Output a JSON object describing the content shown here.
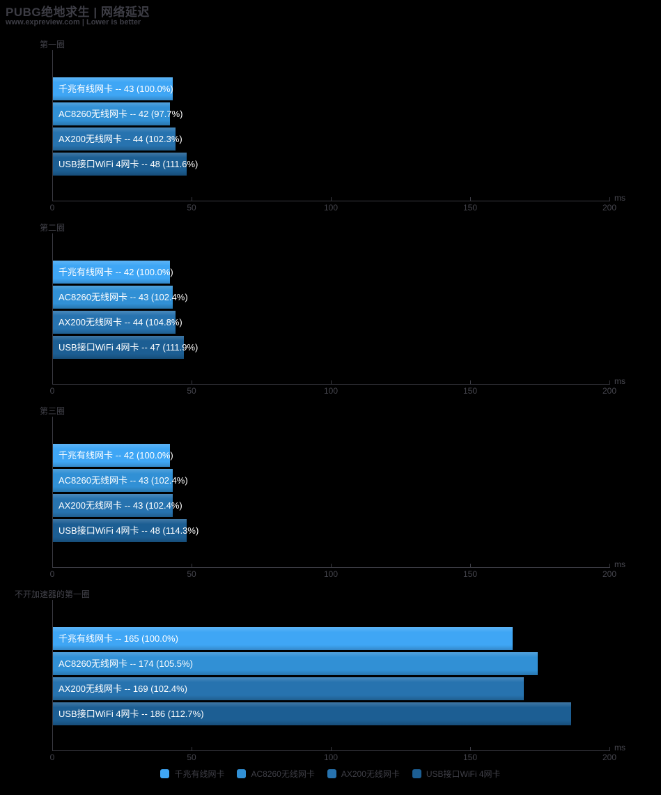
{
  "header": {
    "title": "PUBG绝地求生 | 网络延迟",
    "subtitle": "www.expreview.com | Lower is better"
  },
  "colors": {
    "background": "#000000",
    "chrome_text": "#43434b",
    "axis_line": "#3a3a42",
    "bar_text": "#ffffff",
    "series": [
      "#3fa6f5",
      "#3190d5",
      "#2773af",
      "#1c5e93"
    ]
  },
  "axis": {
    "min": 0,
    "max": 200,
    "ticks": [
      0,
      50,
      100,
      150,
      200
    ],
    "unit": "ms"
  },
  "label_separator": "--",
  "chart_data": [
    {
      "type": "bar",
      "title": "第一圈",
      "categories": [
        "千兆有线网卡",
        "AC8260无线网卡",
        "AX200无线网卡",
        "USB接口WiFi 4网卡"
      ],
      "values": [
        43,
        42,
        44,
        48
      ],
      "percent_labels": [
        "100.0%",
        "97.7%",
        "102.3%",
        "111.6%"
      ],
      "xlabel": "ms",
      "xlim": [
        0,
        200
      ]
    },
    {
      "type": "bar",
      "title": "第二圈",
      "categories": [
        "千兆有线网卡",
        "AC8260无线网卡",
        "AX200无线网卡",
        "USB接口WiFi 4网卡"
      ],
      "values": [
        42,
        43,
        44,
        47
      ],
      "percent_labels": [
        "100.0%",
        "102.4%",
        "104.8%",
        "111.9%"
      ],
      "xlabel": "ms",
      "xlim": [
        0,
        200
      ]
    },
    {
      "type": "bar",
      "title": "第三圈",
      "categories": [
        "千兆有线网卡",
        "AC8260无线网卡",
        "AX200无线网卡",
        "USB接口WiFi 4网卡"
      ],
      "values": [
        42,
        43,
        43,
        48
      ],
      "percent_labels": [
        "100.0%",
        "102.4%",
        "102.4%",
        "114.3%"
      ],
      "xlabel": "ms",
      "xlim": [
        0,
        200
      ]
    },
    {
      "type": "bar",
      "title": "不开加速器的第一圈",
      "categories": [
        "千兆有线网卡",
        "AC8260无线网卡",
        "AX200无线网卡",
        "USB接口WiFi 4网卡"
      ],
      "values": [
        165,
        174,
        169,
        186
      ],
      "percent_labels": [
        "100.0%",
        "105.5%",
        "102.4%",
        "112.7%"
      ],
      "xlabel": "ms",
      "xlim": [
        0,
        200
      ]
    }
  ],
  "legend": {
    "items": [
      "千兆有线网卡",
      "AC8260无线网卡",
      "AX200无线网卡",
      "USB接口WiFi 4网卡"
    ]
  }
}
